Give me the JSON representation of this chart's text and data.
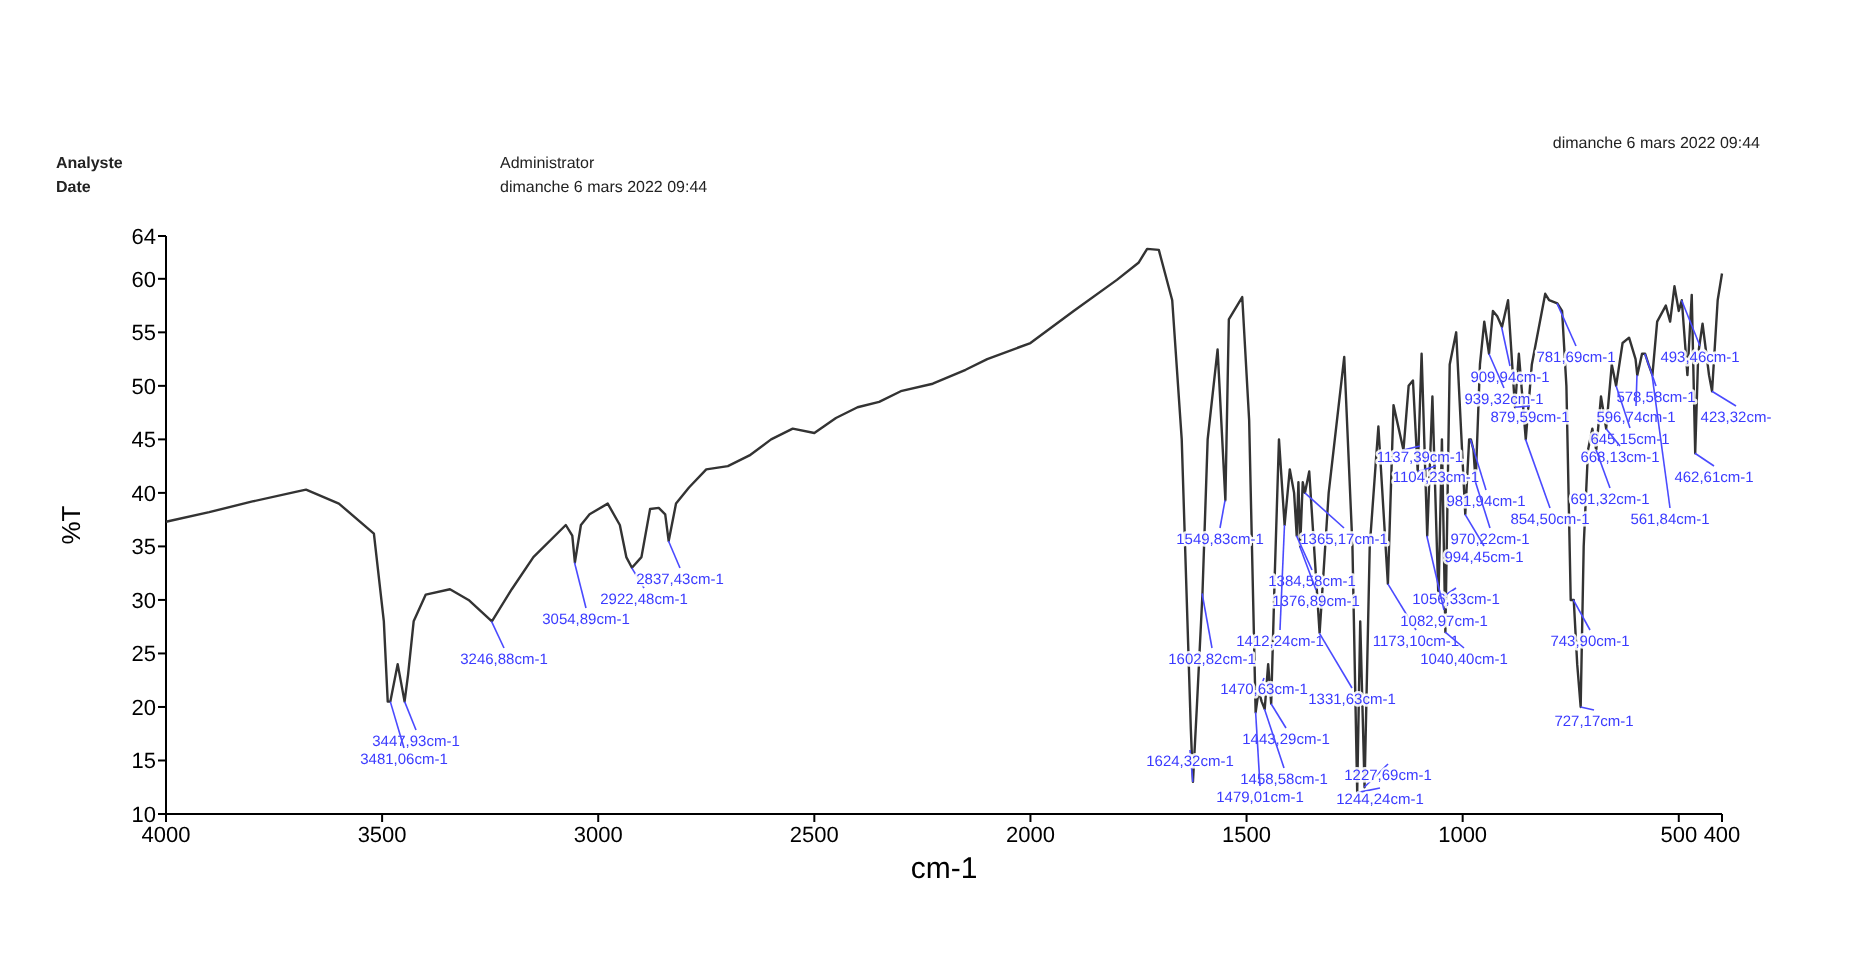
{
  "chart_data": {
    "type": "line",
    "xlabel": "cm-1",
    "ylabel": "%T",
    "xlim": [
      4000,
      400
    ],
    "ylim": [
      10,
      64
    ],
    "xticks": [
      4000,
      3500,
      3000,
      2500,
      2000,
      1500,
      1000,
      500,
      400
    ],
    "yticks": [
      10,
      15,
      20,
      25,
      30,
      35,
      40,
      45,
      50,
      55,
      60,
      64
    ],
    "grid": false,
    "legend": false,
    "marker": "none",
    "line_style": "solid",
    "series": [
      {
        "color": "#333333",
        "x": [
          4000,
          3900,
          3800,
          3700,
          3676,
          3600,
          3519,
          3496,
          3487,
          3481,
          3464,
          3448,
          3440,
          3427,
          3399,
          3343,
          3300,
          3246,
          3200,
          3150,
          3075,
          3060,
          3054,
          3040,
          3020,
          2978,
          2950,
          2935,
          2922,
          2900,
          2880,
          2860,
          2845,
          2837,
          2820,
          2790,
          2750,
          2700,
          2650,
          2600,
          2550,
          2500,
          2450,
          2400,
          2350,
          2300,
          2226,
          2150,
          2100,
          2000,
          1900,
          1800,
          1750,
          1730,
          1703,
          1672,
          1650,
          1629,
          1624,
          1615,
          1602,
          1590,
          1567,
          1549,
          1541,
          1510,
          1494,
          1479,
          1472,
          1465,
          1458,
          1450,
          1443,
          1435,
          1425,
          1412,
          1400,
          1390,
          1384,
          1380,
          1376,
          1370,
          1365,
          1355,
          1331,
          1310,
          1274,
          1255,
          1244,
          1237,
          1227,
          1215,
          1195,
          1173,
          1160,
          1137,
          1125,
          1115,
          1104,
          1095,
          1082,
          1070,
          1056,
          1048,
          1040,
          1030,
          1015,
          994,
          985,
          981,
          975,
          970,
          960,
          950,
          939,
          930,
          920,
          909,
          895,
          879,
          870,
          854,
          840,
          809,
          800,
          781,
          770,
          760,
          750,
          743,
          735,
          727,
          720,
          710,
          700,
          691,
          680,
          668,
          655,
          645,
          630,
          615,
          600,
          596,
          585,
          578,
          570,
          561,
          550,
          530,
          520,
          510,
          500,
          493,
          480,
          470,
          462,
          455,
          445,
          430,
          423,
          410,
          400
        ],
        "values": [
          37.3,
          38.2,
          39.2,
          40.1,
          40.3,
          39,
          36.2,
          28,
          20.5,
          20.5,
          24,
          20.5,
          23,
          28,
          30.5,
          31,
          30,
          28,
          31,
          34,
          37,
          36,
          33.5,
          37,
          38,
          39,
          37,
          34,
          33,
          34,
          38.5,
          38.6,
          38,
          35.5,
          39,
          40.5,
          42.2,
          42.5,
          43.5,
          45,
          46,
          45.6,
          47,
          48,
          48.5,
          49.5,
          50.2,
          51.5,
          52.5,
          54,
          57,
          59.9,
          61.5,
          62.8,
          62.7,
          58,
          45,
          18,
          13,
          20,
          30.6,
          45,
          53.4,
          39.3,
          56.2,
          58.3,
          46.8,
          19.5,
          21.5,
          20.5,
          19.8,
          24,
          20.3,
          32,
          45,
          37,
          42.2,
          40,
          36,
          41,
          35,
          41,
          40,
          42,
          26.9,
          40,
          52.7,
          35,
          12,
          28,
          12.5,
          35,
          46.2,
          31.5,
          48.2,
          44,
          50,
          50.5,
          42,
          53,
          36,
          49,
          30,
          45,
          27,
          52,
          55,
          38,
          45,
          45,
          44,
          41,
          52,
          56,
          53,
          57,
          56.5,
          55.5,
          58,
          48,
          53,
          45,
          52,
          58.6,
          58,
          57.7,
          57,
          50,
          30,
          30,
          24,
          20,
          35,
          44,
          46,
          44,
          49,
          46,
          52,
          50,
          54,
          54.5,
          52.5,
          51,
          53,
          53,
          52,
          51,
          56,
          57.5,
          56,
          59.3,
          57,
          58,
          51,
          58.5,
          43.7,
          53,
          55.8,
          51,
          49.5,
          58,
          60.5
        ]
      }
    ],
    "annotations": [
      "Analyste",
      "Date",
      "Administrator",
      "dimanche 6 mars 2022 09:44",
      "dimanche 6 mars 2022 09:44",
      {
        "text": "3447,93cm-1",
        "x": 3447.93,
        "y": 20.5
      },
      {
        "text": "3481,06cm-1",
        "x": 3481.06,
        "y": 20.5
      },
      {
        "text": "3246,88cm-1",
        "x": 3246.88,
        "y": 28
      },
      {
        "text": "3054,89cm-1",
        "x": 3054.89,
        "y": 33.5
      },
      {
        "text": "2922,48cm-1",
        "x": 2922.48,
        "y": 33
      },
      {
        "text": "2837,43cm-1",
        "x": 2837.43,
        "y": 35.5
      },
      {
        "text": "1549,83cm-1",
        "x": 1549.83,
        "y": 39.3
      },
      {
        "text": "1365,17cm-1",
        "x": 1365.17,
        "y": 40
      },
      {
        "text": "1384,58cm-1",
        "x": 1384.58,
        "y": 36
      },
      {
        "text": "1376,89cm-1",
        "x": 1376.89,
        "y": 35
      },
      {
        "text": "1412,24cm-1",
        "x": 1412.24,
        "y": 37
      },
      {
        "text": "1173,10cm-1",
        "x": 1173.1,
        "y": 31.5
      },
      {
        "text": "1602,82cm-1",
        "x": 1602.82,
        "y": 30.6
      },
      {
        "text": "1470,63cm-1",
        "x": 1470.63,
        "y": 21.5
      },
      {
        "text": "1331,63cm-1",
        "x": 1331.63,
        "y": 26.9
      },
      {
        "text": "1443,29cm-1",
        "x": 1443.29,
        "y": 20.3
      },
      {
        "text": "1624,32cm-1",
        "x": 1624.32,
        "y": 13
      },
      {
        "text": "1458,58cm-1",
        "x": 1458.58,
        "y": 19.8
      },
      {
        "text": "1227,69cm-1",
        "x": 1227.69,
        "y": 12.5
      },
      {
        "text": "1479,01cm-1",
        "x": 1479.01,
        "y": 19.5
      },
      {
        "text": "1244,24cm-1",
        "x": 1244.24,
        "y": 12
      },
      {
        "text": "1137,39cm-1",
        "x": 1137.39,
        "y": 44
      },
      {
        "text": "1104,23cm-1",
        "x": 1104.23,
        "y": 42
      },
      {
        "text": "981,94cm-1",
        "x": 981.94,
        "y": 45
      },
      {
        "text": "854,50cm-1",
        "x": 854.5,
        "y": 45
      },
      {
        "text": "970,22cm-1",
        "x": 970.22,
        "y": 41
      },
      {
        "text": "994,45cm-1",
        "x": 994.45,
        "y": 38
      },
      {
        "text": "1056,33cm-1",
        "x": 1056.33,
        "y": 30
      },
      {
        "text": "1082,97cm-1",
        "x": 1082.97,
        "y": 36
      },
      {
        "text": "1040,40cm-1",
        "x": 1040.4,
        "y": 27
      },
      {
        "text": "781,69cm-1",
        "x": 781.69,
        "y": 57.7
      },
      {
        "text": "909,94cm-1",
        "x": 909.94,
        "y": 55.5
      },
      {
        "text": "939,32cm-1",
        "x": 939.32,
        "y": 53
      },
      {
        "text": "879,59cm-1",
        "x": 879.59,
        "y": 48
      },
      {
        "text": "743,90cm-1",
        "x": 743.9,
        "y": 30
      },
      {
        "text": "727,17cm-1",
        "x": 727.17,
        "y": 20
      },
      {
        "text": "493,46cm-1",
        "x": 493.46,
        "y": 58
      },
      {
        "text": "578,58cm-1",
        "x": 578.58,
        "y": 53
      },
      {
        "text": "596,74cm-1",
        "x": 596.74,
        "y": 51
      },
      {
        "text": "423,32cm-",
        "x": 423.32,
        "y": 49.5
      },
      {
        "text": "645,15cm-1",
        "x": 645.15,
        "y": 50
      },
      {
        "text": "668,13cm-1",
        "x": 668.13,
        "y": 46
      },
      {
        "text": "462,61cm-1",
        "x": 462.61,
        "y": 43.7
      },
      {
        "text": "691,32cm-1",
        "x": 691.32,
        "y": 44
      },
      {
        "text": "561,84cm-1",
        "x": 561.84,
        "y": 51
      }
    ]
  }
}
